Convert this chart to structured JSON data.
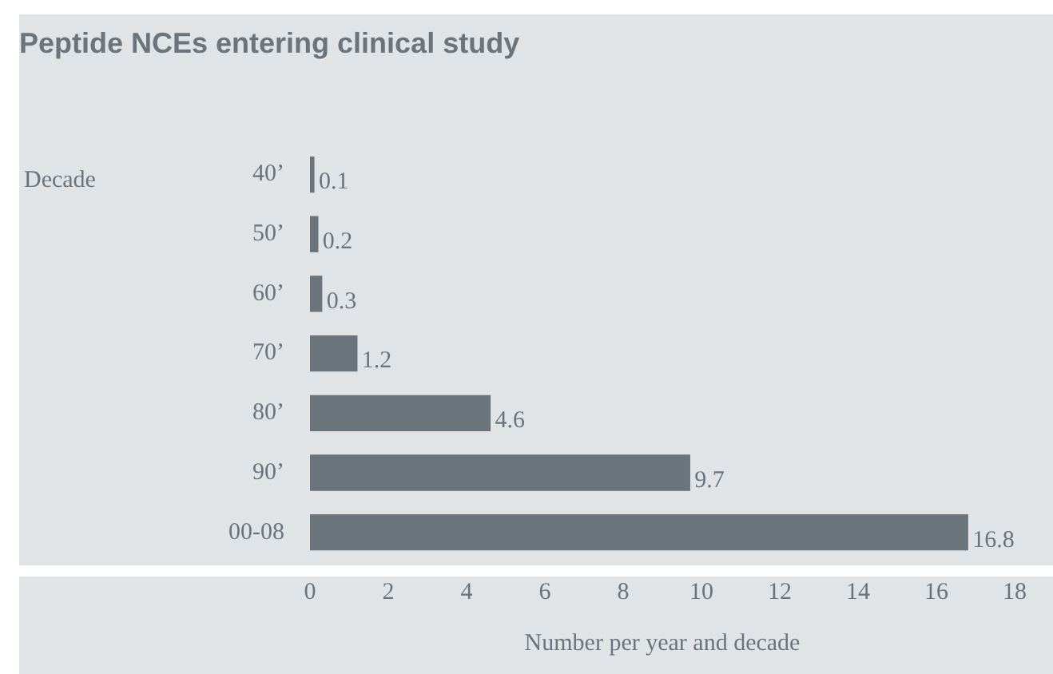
{
  "chart_data": {
    "type": "bar",
    "orientation": "horizontal",
    "title": "Peptide NCEs entering clinical study",
    "annotations": [
      "Decade"
    ],
    "xlabel": "Number per year and decade",
    "categories": [
      "40’",
      "50’",
      "60’",
      "70’",
      "80’",
      "90’",
      "00-08"
    ],
    "values": [
      0.1,
      0.2,
      0.3,
      1.2,
      4.6,
      9.7,
      16.8
    ],
    "color": "#6b737b",
    "xlim": [
      0,
      18
    ],
    "xticks": [
      0,
      2,
      4,
      6,
      8,
      10,
      12,
      14,
      16,
      18
    ],
    "grid": false,
    "legend": false,
    "data_labels": true
  }
}
